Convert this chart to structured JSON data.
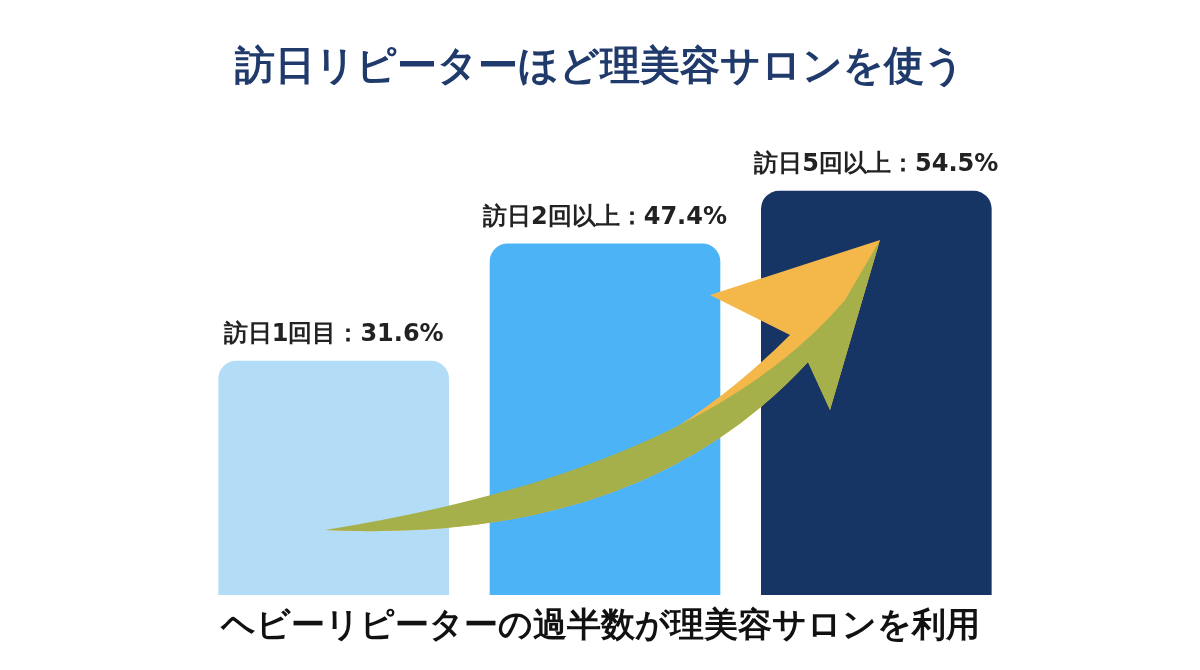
{
  "chart_data": {
    "type": "bar",
    "title": "訪日リピーターほど理美容サロンを使う",
    "categories": [
      null,
      null,
      null
    ],
    "values": [
      31.6,
      47.4,
      54.5
    ],
    "colors": [
      "#b3dcf7",
      "#4db3f7",
      "#163464"
    ],
    "value_labels": [
      "訪日1回目：31.6%",
      "訪日2回以上：47.4%",
      "訪日5回以上：54.5%"
    ],
    "annotations": [
      "ヘビーリピーターの過半数が理美容サロンを利用"
    ]
  }
}
